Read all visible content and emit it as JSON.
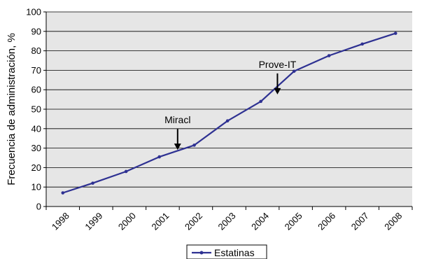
{
  "chart_data": {
    "type": "line",
    "ylabel": "Frecuencia de administración, %",
    "xlabel": "",
    "title": "",
    "categories": [
      "1998",
      "1999",
      "2000",
      "2001",
      "2002",
      "2003",
      "2004",
      "2005",
      "2006",
      "2007",
      "2008"
    ],
    "ylim": [
      0,
      100
    ],
    "yticks": [
      0,
      10,
      20,
      30,
      40,
      50,
      60,
      70,
      80,
      90,
      100
    ],
    "grid": true,
    "legend_position": "bottom",
    "series": [
      {
        "name": "Estatinas",
        "color": "#2e3192",
        "points": [
          {
            "x": 1998.0,
            "y": 7
          },
          {
            "x": 1998.9,
            "y": 12
          },
          {
            "x": 1999.9,
            "y": 18
          },
          {
            "x": 2000.9,
            "y": 25.5
          },
          {
            "x": 2001.95,
            "y": 31.5
          },
          {
            "x": 2002.95,
            "y": 44
          },
          {
            "x": 2003.95,
            "y": 54
          },
          {
            "x": 2004.95,
            "y": 69.5
          },
          {
            "x": 2006.0,
            "y": 77.5
          },
          {
            "x": 2007.0,
            "y": 83.5
          },
          {
            "x": 2008.0,
            "y": 89
          }
        ]
      }
    ],
    "annotations": [
      {
        "text": "Miracl",
        "x": 2001.45,
        "y": 25.5,
        "arrow": "down"
      },
      {
        "text": "Prove-IT",
        "x": 2004.45,
        "y": 54,
        "arrow": "down"
      }
    ],
    "plot_background": "#e6e6e6"
  }
}
